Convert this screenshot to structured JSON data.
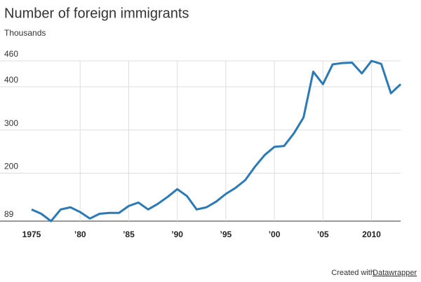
{
  "chart_data": {
    "type": "line",
    "title": "Number of foreign immigrants",
    "subtitle": "Thousands",
    "x": [
      1975,
      1976,
      1977,
      1978,
      1979,
      1980,
      1981,
      1982,
      1983,
      1984,
      1985,
      1986,
      1987,
      1988,
      1989,
      1990,
      1991,
      1992,
      1993,
      1994,
      1995,
      1996,
      1997,
      1998,
      1999,
      2000,
      2001,
      2002,
      2003,
      2004,
      2005,
      2006,
      2007,
      2008,
      2009,
      2010,
      2011,
      2012,
      2013
    ],
    "series": [
      {
        "color": "#2a7ab8",
        "values": [
          116,
          106,
          89,
          116,
          121,
          110,
          95,
          106,
          108,
          108,
          124,
          132,
          116,
          129,
          145,
          163,
          147,
          116,
          121,
          134,
          152,
          166,
          184,
          215,
          242,
          261,
          263,
          292,
          329,
          435,
          406,
          452,
          455,
          456,
          431,
          460,
          453,
          385,
          406
        ]
      }
    ],
    "xlim": [
      1975,
      2013
    ],
    "xticks": [
      1975,
      {
        "value": 1980,
        "label": "’80"
      },
      {
        "value": 1985,
        "label": "’85"
      },
      {
        "value": 1990,
        "label": "’90"
      },
      {
        "value": 1995,
        "label": "’95"
      },
      {
        "value": 2000,
        "label": "’00"
      },
      {
        "value": 2005,
        "label": "’05"
      },
      2010
    ],
    "ylim": [
      89,
      460
    ],
    "yticks": [
      89,
      200,
      300,
      400,
      460
    ],
    "grid": true
  },
  "footer": {
    "prefix": "Created with",
    "link": "Datawrapper"
  }
}
